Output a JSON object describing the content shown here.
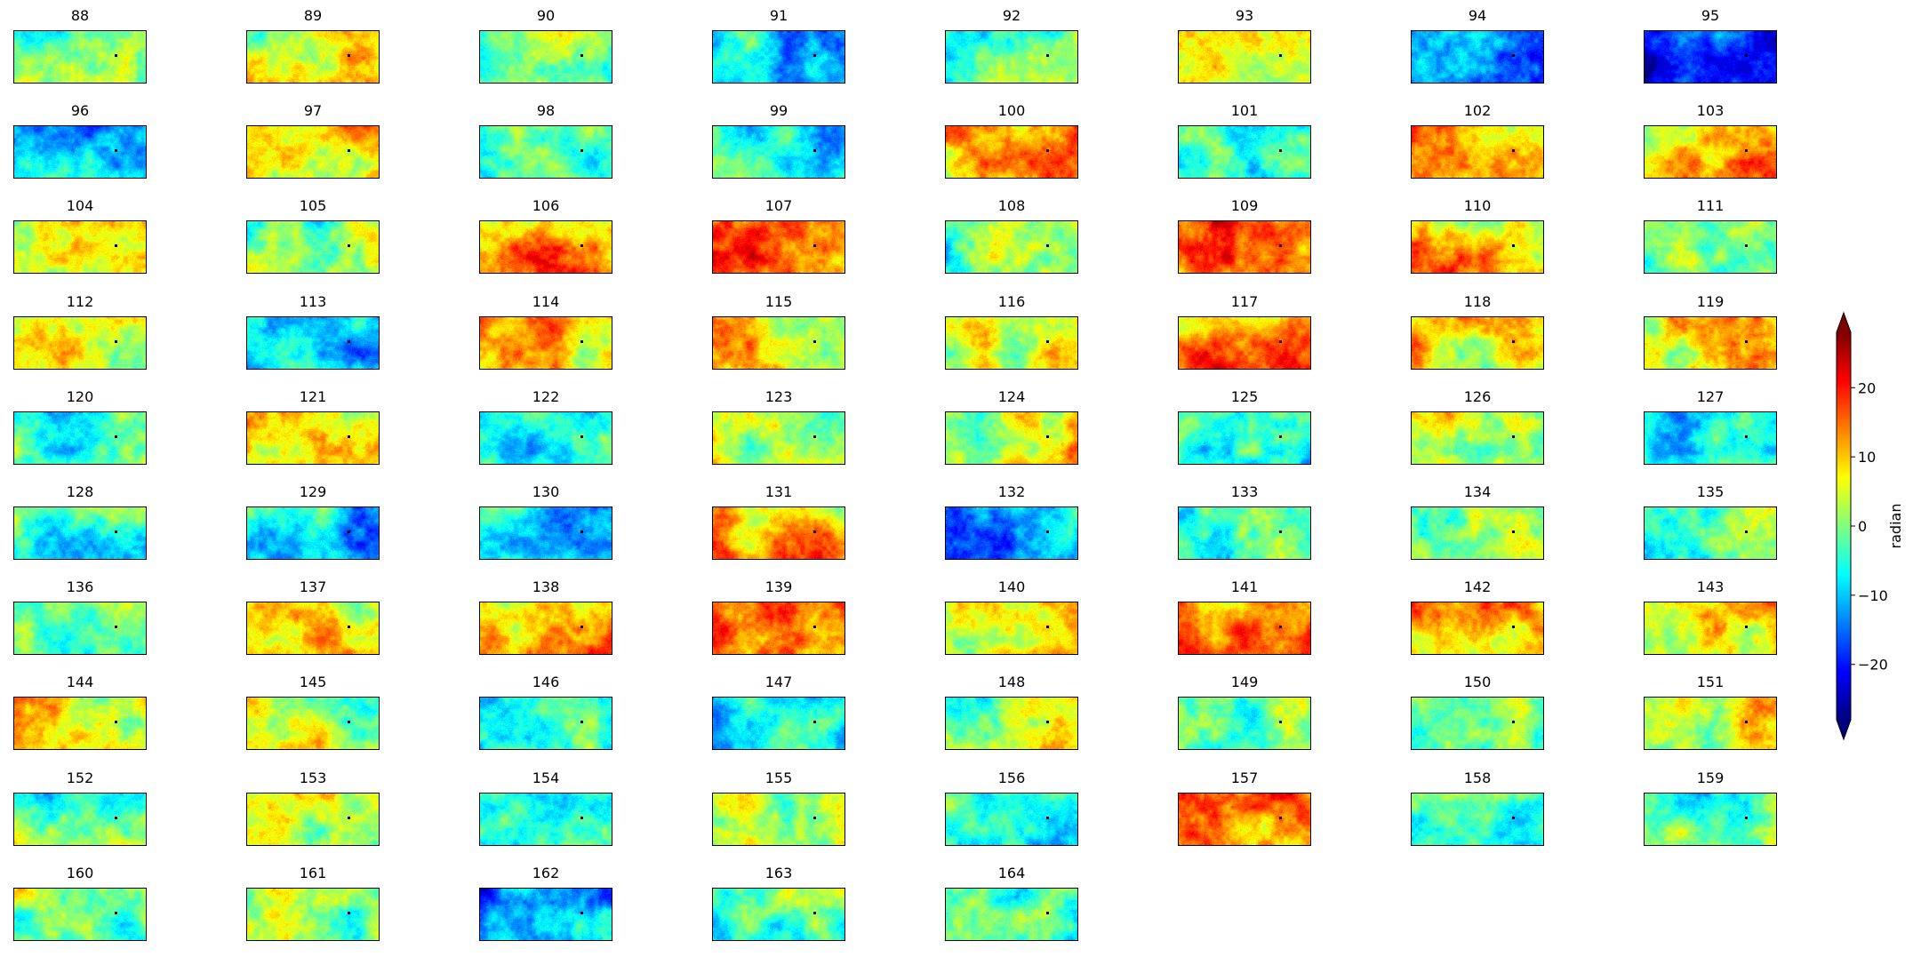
{
  "chart_data": {
    "type": "heatmap",
    "layout": "small-multiples",
    "colormap": "jet",
    "colorbar": {
      "label": "radian",
      "ticks": [
        20,
        10,
        0,
        -10,
        -20
      ],
      "tick_labels": [
        "20",
        "10",
        "0",
        "−10",
        "−20"
      ],
      "vmin": -28,
      "vmax": 28,
      "extend": "both"
    },
    "panels": [
      {
        "title": "88",
        "mean": 0
      },
      {
        "title": "89",
        "mean": 7
      },
      {
        "title": "90",
        "mean": -2
      },
      {
        "title": "91",
        "mean": -8
      },
      {
        "title": "92",
        "mean": -1
      },
      {
        "title": "93",
        "mean": 7
      },
      {
        "title": "94",
        "mean": -14
      },
      {
        "title": "95",
        "mean": -20
      },
      {
        "title": "96",
        "mean": -10
      },
      {
        "title": "97",
        "mean": 7
      },
      {
        "title": "98",
        "mean": -4
      },
      {
        "title": "99",
        "mean": -5
      },
      {
        "title": "100",
        "mean": 12
      },
      {
        "title": "101",
        "mean": -5
      },
      {
        "title": "102",
        "mean": 8
      },
      {
        "title": "103",
        "mean": 11
      },
      {
        "title": "104",
        "mean": 4
      },
      {
        "title": "105",
        "mean": -1
      },
      {
        "title": "106",
        "mean": 13
      },
      {
        "title": "107",
        "mean": 16
      },
      {
        "title": "108",
        "mean": 0
      },
      {
        "title": "109",
        "mean": 15
      },
      {
        "title": "110",
        "mean": 9
      },
      {
        "title": "111",
        "mean": -1
      },
      {
        "title": "112",
        "mean": 3
      },
      {
        "title": "113",
        "mean": -9
      },
      {
        "title": "114",
        "mean": 9
      },
      {
        "title": "115",
        "mean": 7
      },
      {
        "title": "116",
        "mean": 4
      },
      {
        "title": "117",
        "mean": 13
      },
      {
        "title": "118",
        "mean": 9
      },
      {
        "title": "119",
        "mean": 9
      },
      {
        "title": "120",
        "mean": -3
      },
      {
        "title": "121",
        "mean": 10
      },
      {
        "title": "122",
        "mean": -4
      },
      {
        "title": "123",
        "mean": 2
      },
      {
        "title": "124",
        "mean": 6
      },
      {
        "title": "125",
        "mean": -3
      },
      {
        "title": "126",
        "mean": 5
      },
      {
        "title": "127",
        "mean": -6
      },
      {
        "title": "128",
        "mean": -5
      },
      {
        "title": "129",
        "mean": -8
      },
      {
        "title": "130",
        "mean": -8
      },
      {
        "title": "131",
        "mean": 11
      },
      {
        "title": "132",
        "mean": -12
      },
      {
        "title": "133",
        "mean": -4
      },
      {
        "title": "134",
        "mean": 2
      },
      {
        "title": "135",
        "mean": -3
      },
      {
        "title": "136",
        "mean": -2
      },
      {
        "title": "137",
        "mean": 8
      },
      {
        "title": "138",
        "mean": 11
      },
      {
        "title": "139",
        "mean": 13
      },
      {
        "title": "140",
        "mean": 7
      },
      {
        "title": "141",
        "mean": 14
      },
      {
        "title": "142",
        "mean": 11
      },
      {
        "title": "143",
        "mean": 5
      },
      {
        "title": "144",
        "mean": 8
      },
      {
        "title": "145",
        "mean": 4
      },
      {
        "title": "146",
        "mean": -5
      },
      {
        "title": "147",
        "mean": -8
      },
      {
        "title": "148",
        "mean": 2
      },
      {
        "title": "149",
        "mean": 0
      },
      {
        "title": "150",
        "mean": -1
      },
      {
        "title": "151",
        "mean": 5
      },
      {
        "title": "152",
        "mean": -2
      },
      {
        "title": "153",
        "mean": 5
      },
      {
        "title": "154",
        "mean": -5
      },
      {
        "title": "155",
        "mean": 4
      },
      {
        "title": "156",
        "mean": -6
      },
      {
        "title": "157",
        "mean": 14
      },
      {
        "title": "158",
        "mean": -5
      },
      {
        "title": "159",
        "mean": 0
      },
      {
        "title": "160",
        "mean": 0
      },
      {
        "title": "161",
        "mean": 4
      },
      {
        "title": "162",
        "mean": -14
      },
      {
        "title": "163",
        "mean": -3
      },
      {
        "title": "164",
        "mean": -3
      }
    ]
  }
}
